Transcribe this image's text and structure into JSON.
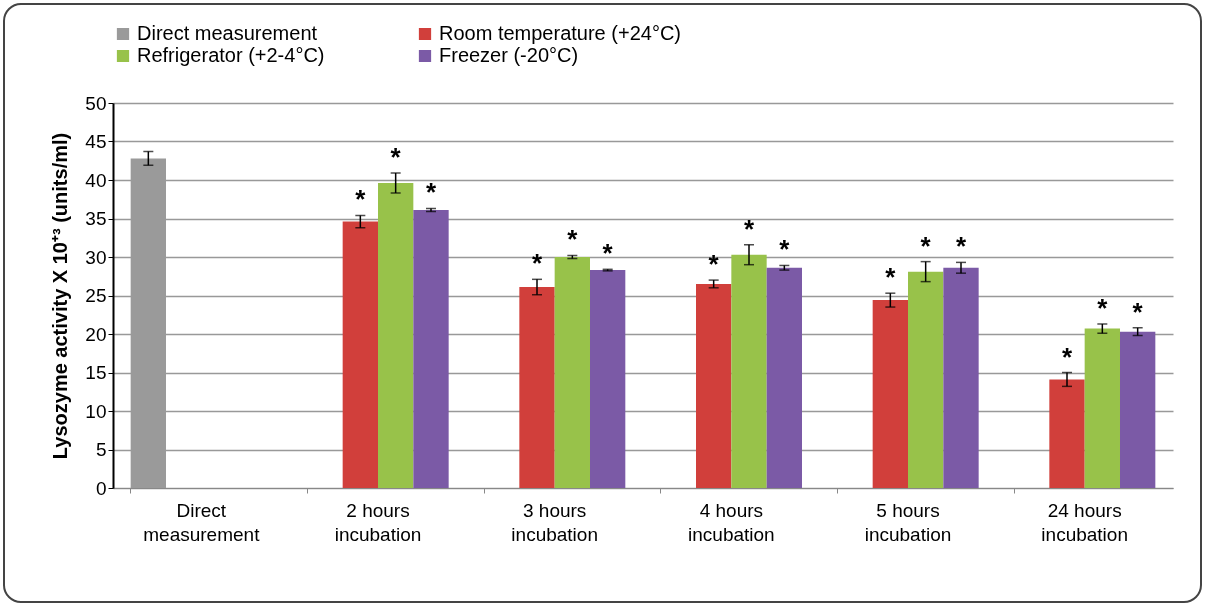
{
  "chart_data": {
    "type": "bar",
    "ylabel": "Lysozyme activity X 10⁺³ (units/ml)",
    "categories": [
      "Direct measurement",
      "2 hours incubation",
      "3 hours incubation",
      "4 hours incubation",
      "5 hours incubation",
      "24 hours incubation"
    ],
    "series": [
      {
        "name": "Direct measurement",
        "color": "#9a9a9a",
        "values": [
          42.8,
          null,
          null,
          null,
          null,
          null
        ],
        "errors": [
          0.9,
          null,
          null,
          null,
          null,
          null
        ]
      },
      {
        "name": "Room temperature (+24°C)",
        "color": "#d13f3b",
        "values": [
          null,
          34.6,
          26.1,
          26.5,
          24.4,
          14.1
        ],
        "errors": [
          null,
          0.8,
          1,
          0.5,
          0.9,
          0.9
        ],
        "value_labels": [
          null,
          "*",
          "*",
          "*",
          "*",
          "*"
        ]
      },
      {
        "name": "Refrigerator (+2-4°C)",
        "color": "#98c24a",
        "values": [
          null,
          39.6,
          30,
          30.3,
          28.1,
          20.7
        ],
        "errors": [
          null,
          1.3,
          0.2,
          1.3,
          1.3,
          0.6
        ],
        "value_labels": [
          null,
          "*",
          "*",
          "*",
          "*",
          "*"
        ]
      },
      {
        "name": "Freezer (-20°C)",
        "color": "#7b5aa6",
        "values": [
          null,
          36.1,
          28.3,
          28.6,
          28.6,
          20.3
        ],
        "errors": [
          null,
          0.2,
          0.1,
          0.3,
          0.7,
          0.5
        ],
        "value_labels": [
          null,
          "*",
          "*",
          "*",
          "*",
          "*"
        ]
      }
    ],
    "ylim": [
      0,
      50
    ],
    "yticks": [
      0,
      5,
      10,
      15,
      20,
      25,
      30,
      35,
      40,
      45,
      50
    ],
    "grid": "y",
    "legend": "top"
  }
}
